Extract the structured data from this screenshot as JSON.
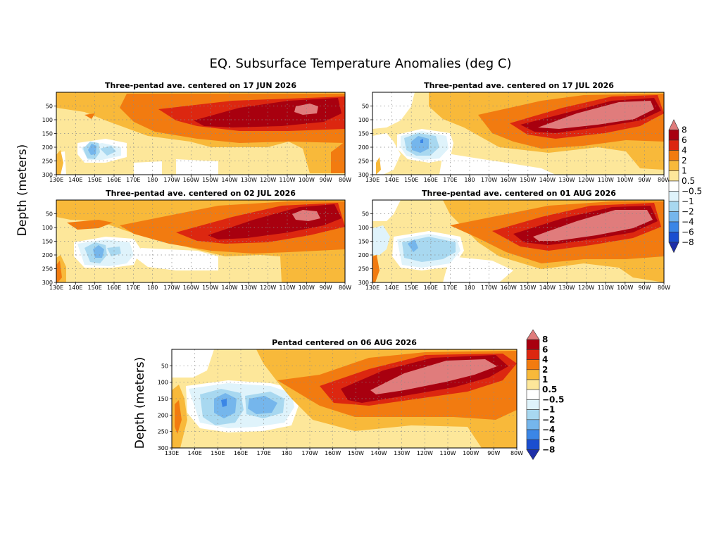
{
  "title": "EQ. Subsurface Temperature Anomalies (deg C)",
  "ylabel": "Depth (meters)",
  "colors": {
    "c8": "#e07c7c",
    "c6": "#a8000f",
    "c4": "#dc2710",
    "c2": "#f27b10",
    "c1": "#f8b93a",
    "c05": "#fde79a",
    "cwhite": "#ffffff",
    "cm05": "#dff3fb",
    "cm1": "#a8d8f0",
    "cm2": "#75b6ec",
    "cm4": "#3b86e6",
    "cm6": "#1b4ed0",
    "cm8": "#1f2fa8"
  },
  "chart_data": [
    {
      "type": "heatmap",
      "title": "Three-pentad ave. centered on 17 JUN 2026",
      "xlabel": "",
      "ylabel": "Depth (meters)",
      "x_ticks": [
        "130E",
        "140E",
        "150E",
        "160E",
        "170E",
        "180",
        "170W",
        "160W",
        "150W",
        "140W",
        "130W",
        "120W",
        "110W",
        "100W",
        "90W",
        "80W"
      ],
      "y_ticks": [
        50,
        100,
        150,
        200,
        250,
        300
      ],
      "ylim": [
        300,
        0
      ],
      "features": [
        {
          "anomaly": 8,
          "lon": "105W",
          "depth": 50
        },
        {
          "anomaly": 6,
          "lon": "115W",
          "depth": 75
        },
        {
          "anomaly": -2,
          "lon": "158E",
          "depth": 200
        }
      ]
    },
    {
      "type": "heatmap",
      "title": "Three-pentad ave. centered on 17 JUL 2026",
      "xlabel": "",
      "ylabel": "",
      "x_ticks": [
        "130E",
        "140E",
        "150E",
        "160E",
        "170E",
        "180",
        "170W",
        "160W",
        "150W",
        "140W",
        "130W",
        "120W",
        "110W",
        "100W",
        "90W",
        "80W"
      ],
      "y_ticks": [
        50,
        100,
        150,
        200,
        250,
        300
      ],
      "ylim": [
        300,
        0
      ],
      "features": [
        {
          "anomaly": 8,
          "lon": "115W",
          "depth": 100
        },
        {
          "anomaly": 6,
          "lon": "120W",
          "depth": 100
        },
        {
          "anomaly": -2,
          "lon": "157E",
          "depth": 190
        }
      ]
    },
    {
      "type": "heatmap",
      "title": "Three-pentad ave. centered on 02 JUL 2026",
      "xlabel": "",
      "ylabel": "Depth (meters)",
      "x_ticks": [
        "130E",
        "140E",
        "150E",
        "160E",
        "170E",
        "180",
        "170W",
        "160W",
        "150W",
        "140W",
        "130W",
        "120W",
        "110W",
        "100W",
        "90W",
        "80W"
      ],
      "y_ticks": [
        50,
        100,
        150,
        200,
        250,
        300
      ],
      "ylim": [
        300,
        0
      ],
      "features": [
        {
          "anomaly": 8,
          "lon": "100W",
          "depth": 60
        },
        {
          "anomaly": 6,
          "lon": "120W",
          "depth": 100
        },
        {
          "anomaly": -2,
          "lon": "152E",
          "depth": 190
        }
      ]
    },
    {
      "type": "heatmap",
      "title": "Three-pentad ave. centered on 01 AUG 2026",
      "xlabel": "",
      "ylabel": "",
      "x_ticks": [
        "130E",
        "140E",
        "150E",
        "160E",
        "170E",
        "180",
        "170W",
        "160W",
        "150W",
        "140W",
        "130W",
        "120W",
        "110W",
        "100W",
        "90W",
        "80W"
      ],
      "y_ticks": [
        50,
        100,
        150,
        200,
        250,
        300
      ],
      "ylim": [
        300,
        0
      ],
      "features": [
        {
          "anomaly": 8,
          "lon": "115W",
          "depth": 100
        },
        {
          "anomaly": 6,
          "lon": "125W",
          "depth": 100
        },
        {
          "anomaly": -2,
          "lon": "155E",
          "depth": 160
        }
      ]
    },
    {
      "type": "heatmap",
      "title": "Pentad centered on 06 AUG 2026",
      "xlabel": "",
      "ylabel": "Depth (meters)",
      "x_ticks": [
        "130E",
        "140E",
        "150E",
        "160E",
        "170E",
        "180",
        "170W",
        "160W",
        "150W",
        "140W",
        "130W",
        "120W",
        "110W",
        "100W",
        "90W",
        "80W"
      ],
      "y_ticks": [
        50,
        100,
        150,
        200,
        250,
        300
      ],
      "ylim": [
        300,
        0
      ],
      "features": [
        {
          "anomaly": 8,
          "lon": "115W",
          "depth": 100
        },
        {
          "anomaly": 6,
          "lon": "120W",
          "depth": 90
        },
        {
          "anomaly": -2,
          "lon": "152E",
          "depth": 165
        }
      ]
    }
  ],
  "colorbar": {
    "levels": [
      "8",
      "6",
      "4",
      "2",
      "1",
      "0.5",
      "−0.5",
      "−1",
      "−2",
      "−4",
      "−6",
      "−8"
    ],
    "levels_main": [
      "8",
      "6",
      "4",
      "2",
      "1",
      "0.5",
      "−0.5",
      "−1",
      "−2",
      "−4",
      "−6",
      "−8"
    ]
  }
}
